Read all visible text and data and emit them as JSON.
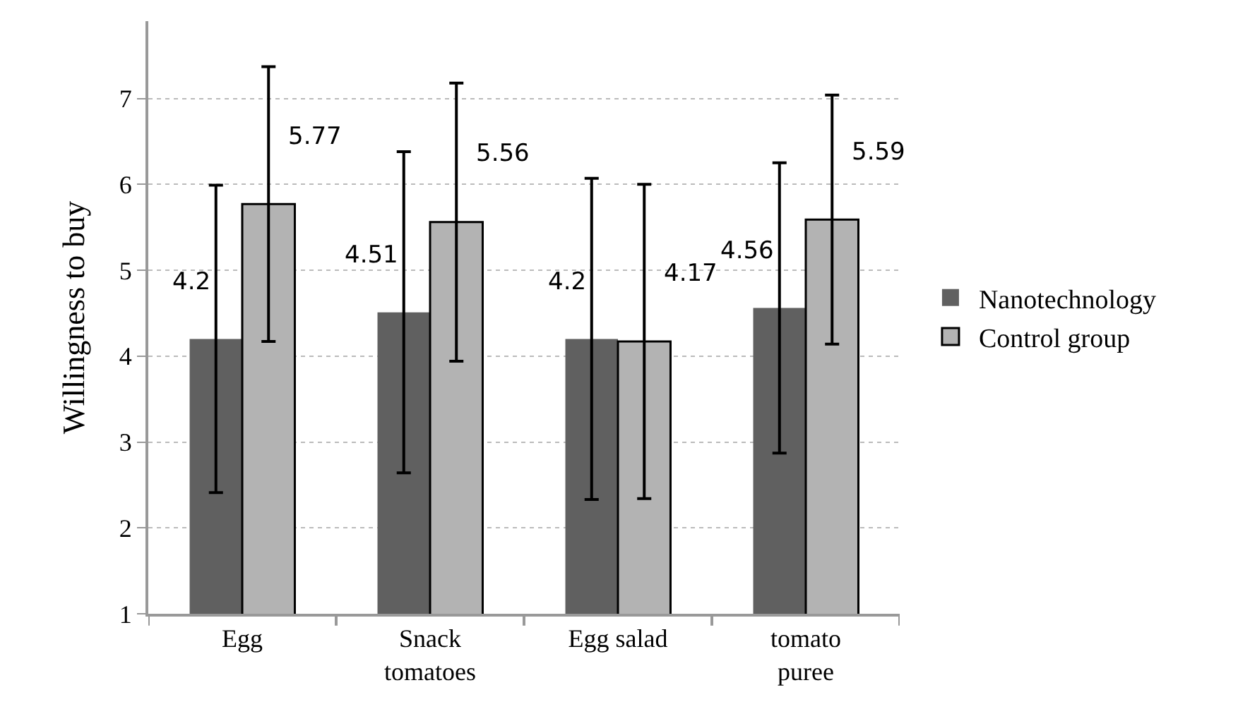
{
  "chart_data": {
    "type": "bar",
    "ylabel": "Willingness to buy",
    "categories": [
      "Egg",
      "Snack\ntomatoes",
      "Egg salad",
      "tomato\npuree"
    ],
    "series": [
      {
        "name": "Nanotechnology",
        "color": "#606060",
        "values": [
          4.2,
          4.51,
          4.2,
          4.56
        ],
        "errors": [
          1.79,
          1.87,
          1.87,
          1.69
        ]
      },
      {
        "name": "Control group",
        "color": "#b3b3b3",
        "values": [
          5.77,
          5.56,
          4.17,
          5.59
        ],
        "errors": [
          1.6,
          1.62,
          1.83,
          1.45
        ]
      }
    ],
    "ylim": [
      1,
      7.9
    ],
    "yticks": [
      1,
      2,
      3,
      4,
      5,
      6,
      7
    ],
    "grid": "y",
    "legend": "right",
    "data_labels": true
  }
}
